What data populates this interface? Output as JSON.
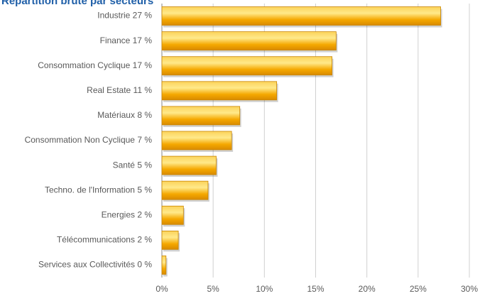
{
  "chart_data": {
    "type": "bar",
    "orientation": "horizontal",
    "title": "Répartition brute par secteurs",
    "categories": [
      "Industrie 27 %",
      "Finance 17 %",
      "Consommation Cyclique 17 %",
      "Real Estate 11 %",
      "Matériaux 8 %",
      "Consommation Non Cyclique 7 %",
      "Santé 5 %",
      "Techno. de l'Information 5 %",
      "Energies 2 %",
      "Télécommunications 2 %",
      "Services aux Collectivités 0 %"
    ],
    "values": [
      27.2,
      17.0,
      16.6,
      11.2,
      7.6,
      6.8,
      5.3,
      4.5,
      2.1,
      1.6,
      0.4
    ],
    "color": "#f5a800",
    "xlim": [
      0,
      30
    ],
    "xticks": [
      {
        "value": 0,
        "label": "0%"
      },
      {
        "value": 5,
        "label": "5%"
      },
      {
        "value": 10,
        "label": "10%"
      },
      {
        "value": 15,
        "label": "15%"
      },
      {
        "value": 20,
        "label": "20%"
      },
      {
        "value": 25,
        "label": "25%"
      },
      {
        "value": 30,
        "label": "30%"
      }
    ],
    "grid": true
  }
}
